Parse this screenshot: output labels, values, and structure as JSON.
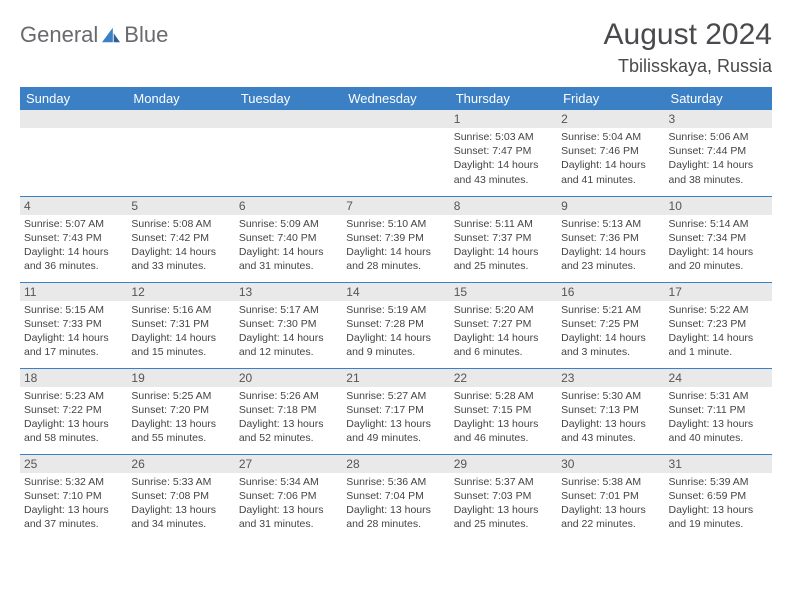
{
  "brand": {
    "text1": "General",
    "text2": "Blue"
  },
  "title": {
    "month": "August 2024",
    "location": "Tbilisskaya, Russia"
  },
  "colors": {
    "header_bg": "#3b7fc4",
    "header_text": "#ffffff",
    "daynum_bg": "#e9e9e9",
    "row_divider": "#3b7fc4",
    "body_text": "#444444",
    "title_text": "#4a4a4e",
    "logo_gray": "#6a6a6e",
    "logo_blue": "#3b7fc4"
  },
  "typography": {
    "title_fontsize_pt": 22,
    "subtitle_fontsize_pt": 14,
    "weekday_fontsize_pt": 10,
    "daynum_fontsize_pt": 9,
    "body_fontsize_pt": 8
  },
  "calendar": {
    "type": "table",
    "weekdays": [
      "Sunday",
      "Monday",
      "Tuesday",
      "Wednesday",
      "Thursday",
      "Friday",
      "Saturday"
    ],
    "weeks": [
      [
        {
          "n": "",
          "sr": "",
          "ss": "",
          "dl": ""
        },
        {
          "n": "",
          "sr": "",
          "ss": "",
          "dl": ""
        },
        {
          "n": "",
          "sr": "",
          "ss": "",
          "dl": ""
        },
        {
          "n": "",
          "sr": "",
          "ss": "",
          "dl": ""
        },
        {
          "n": "1",
          "sr": "Sunrise: 5:03 AM",
          "ss": "Sunset: 7:47 PM",
          "dl": "Daylight: 14 hours and 43 minutes."
        },
        {
          "n": "2",
          "sr": "Sunrise: 5:04 AM",
          "ss": "Sunset: 7:46 PM",
          "dl": "Daylight: 14 hours and 41 minutes."
        },
        {
          "n": "3",
          "sr": "Sunrise: 5:06 AM",
          "ss": "Sunset: 7:44 PM",
          "dl": "Daylight: 14 hours and 38 minutes."
        }
      ],
      [
        {
          "n": "4",
          "sr": "Sunrise: 5:07 AM",
          "ss": "Sunset: 7:43 PM",
          "dl": "Daylight: 14 hours and 36 minutes."
        },
        {
          "n": "5",
          "sr": "Sunrise: 5:08 AM",
          "ss": "Sunset: 7:42 PM",
          "dl": "Daylight: 14 hours and 33 minutes."
        },
        {
          "n": "6",
          "sr": "Sunrise: 5:09 AM",
          "ss": "Sunset: 7:40 PM",
          "dl": "Daylight: 14 hours and 31 minutes."
        },
        {
          "n": "7",
          "sr": "Sunrise: 5:10 AM",
          "ss": "Sunset: 7:39 PM",
          "dl": "Daylight: 14 hours and 28 minutes."
        },
        {
          "n": "8",
          "sr": "Sunrise: 5:11 AM",
          "ss": "Sunset: 7:37 PM",
          "dl": "Daylight: 14 hours and 25 minutes."
        },
        {
          "n": "9",
          "sr": "Sunrise: 5:13 AM",
          "ss": "Sunset: 7:36 PM",
          "dl": "Daylight: 14 hours and 23 minutes."
        },
        {
          "n": "10",
          "sr": "Sunrise: 5:14 AM",
          "ss": "Sunset: 7:34 PM",
          "dl": "Daylight: 14 hours and 20 minutes."
        }
      ],
      [
        {
          "n": "11",
          "sr": "Sunrise: 5:15 AM",
          "ss": "Sunset: 7:33 PM",
          "dl": "Daylight: 14 hours and 17 minutes."
        },
        {
          "n": "12",
          "sr": "Sunrise: 5:16 AM",
          "ss": "Sunset: 7:31 PM",
          "dl": "Daylight: 14 hours and 15 minutes."
        },
        {
          "n": "13",
          "sr": "Sunrise: 5:17 AM",
          "ss": "Sunset: 7:30 PM",
          "dl": "Daylight: 14 hours and 12 minutes."
        },
        {
          "n": "14",
          "sr": "Sunrise: 5:19 AM",
          "ss": "Sunset: 7:28 PM",
          "dl": "Daylight: 14 hours and 9 minutes."
        },
        {
          "n": "15",
          "sr": "Sunrise: 5:20 AM",
          "ss": "Sunset: 7:27 PM",
          "dl": "Daylight: 14 hours and 6 minutes."
        },
        {
          "n": "16",
          "sr": "Sunrise: 5:21 AM",
          "ss": "Sunset: 7:25 PM",
          "dl": "Daylight: 14 hours and 3 minutes."
        },
        {
          "n": "17",
          "sr": "Sunrise: 5:22 AM",
          "ss": "Sunset: 7:23 PM",
          "dl": "Daylight: 14 hours and 1 minute."
        }
      ],
      [
        {
          "n": "18",
          "sr": "Sunrise: 5:23 AM",
          "ss": "Sunset: 7:22 PM",
          "dl": "Daylight: 13 hours and 58 minutes."
        },
        {
          "n": "19",
          "sr": "Sunrise: 5:25 AM",
          "ss": "Sunset: 7:20 PM",
          "dl": "Daylight: 13 hours and 55 minutes."
        },
        {
          "n": "20",
          "sr": "Sunrise: 5:26 AM",
          "ss": "Sunset: 7:18 PM",
          "dl": "Daylight: 13 hours and 52 minutes."
        },
        {
          "n": "21",
          "sr": "Sunrise: 5:27 AM",
          "ss": "Sunset: 7:17 PM",
          "dl": "Daylight: 13 hours and 49 minutes."
        },
        {
          "n": "22",
          "sr": "Sunrise: 5:28 AM",
          "ss": "Sunset: 7:15 PM",
          "dl": "Daylight: 13 hours and 46 minutes."
        },
        {
          "n": "23",
          "sr": "Sunrise: 5:30 AM",
          "ss": "Sunset: 7:13 PM",
          "dl": "Daylight: 13 hours and 43 minutes."
        },
        {
          "n": "24",
          "sr": "Sunrise: 5:31 AM",
          "ss": "Sunset: 7:11 PM",
          "dl": "Daylight: 13 hours and 40 minutes."
        }
      ],
      [
        {
          "n": "25",
          "sr": "Sunrise: 5:32 AM",
          "ss": "Sunset: 7:10 PM",
          "dl": "Daylight: 13 hours and 37 minutes."
        },
        {
          "n": "26",
          "sr": "Sunrise: 5:33 AM",
          "ss": "Sunset: 7:08 PM",
          "dl": "Daylight: 13 hours and 34 minutes."
        },
        {
          "n": "27",
          "sr": "Sunrise: 5:34 AM",
          "ss": "Sunset: 7:06 PM",
          "dl": "Daylight: 13 hours and 31 minutes."
        },
        {
          "n": "28",
          "sr": "Sunrise: 5:36 AM",
          "ss": "Sunset: 7:04 PM",
          "dl": "Daylight: 13 hours and 28 minutes."
        },
        {
          "n": "29",
          "sr": "Sunrise: 5:37 AM",
          "ss": "Sunset: 7:03 PM",
          "dl": "Daylight: 13 hours and 25 minutes."
        },
        {
          "n": "30",
          "sr": "Sunrise: 5:38 AM",
          "ss": "Sunset: 7:01 PM",
          "dl": "Daylight: 13 hours and 22 minutes."
        },
        {
          "n": "31",
          "sr": "Sunrise: 5:39 AM",
          "ss": "Sunset: 6:59 PM",
          "dl": "Daylight: 13 hours and 19 minutes."
        }
      ]
    ]
  }
}
